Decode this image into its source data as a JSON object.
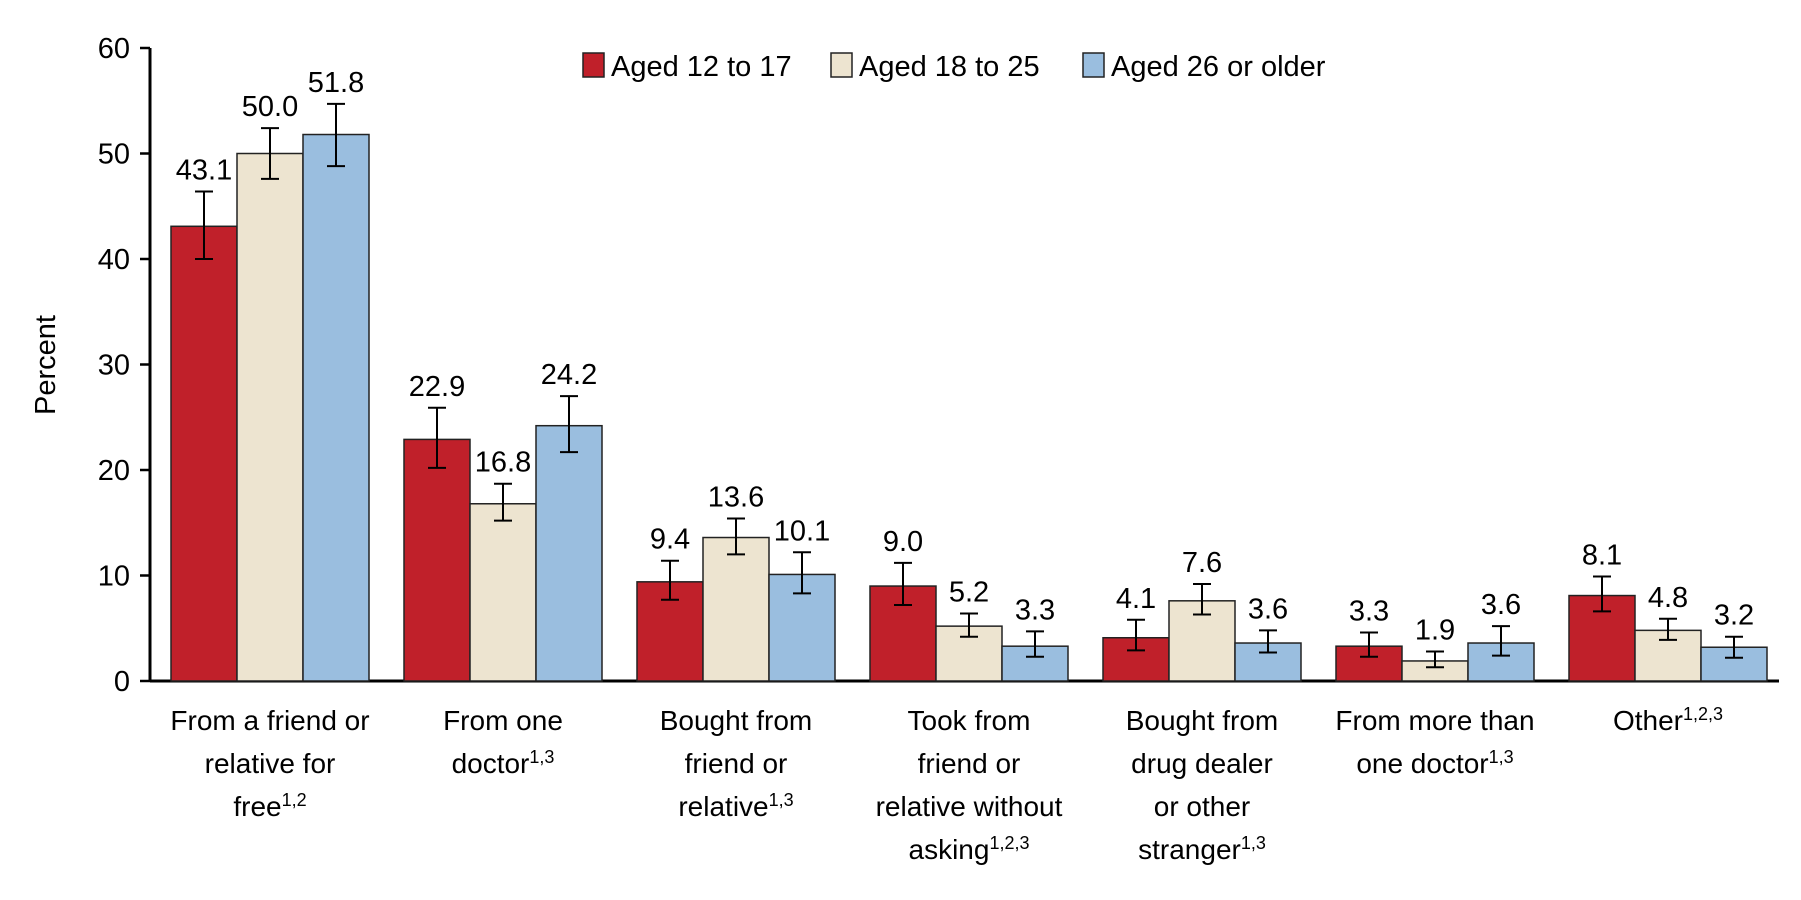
{
  "chart_data": {
    "type": "bar",
    "title": "",
    "xlabel": "",
    "ylabel": "Percent",
    "ylim": [
      0,
      60
    ],
    "yticks": [
      0,
      10,
      20,
      30,
      40,
      50,
      60
    ],
    "grid": false,
    "legend_position": "top-center",
    "categories": [
      {
        "lines": [
          "From a friend or",
          "relative for",
          "free"
        ],
        "sup": "1,2"
      },
      {
        "lines": [
          "From one",
          "doctor"
        ],
        "sup": "1,3"
      },
      {
        "lines": [
          "Bought from",
          "friend or",
          "relative"
        ],
        "sup": "1,3"
      },
      {
        "lines": [
          "Took from",
          "friend or",
          "relative without",
          "asking"
        ],
        "sup": "1,2,3"
      },
      {
        "lines": [
          "Bought from",
          "drug dealer",
          "or other",
          "stranger"
        ],
        "sup": "1,3"
      },
      {
        "lines": [
          "From more than",
          "one doctor"
        ],
        "sup": "1,3"
      },
      {
        "lines": [
          "Other"
        ],
        "sup": "1,2,3"
      }
    ],
    "series": [
      {
        "name": "Aged 12 to 17",
        "color": "#C0202A",
        "values": [
          43.1,
          22.9,
          9.4,
          9.0,
          4.1,
          3.3,
          8.1
        ],
        "ci_low": [
          40.0,
          20.2,
          7.7,
          7.2,
          2.9,
          2.3,
          6.6
        ],
        "ci_high": [
          46.4,
          25.9,
          11.4,
          11.2,
          5.8,
          4.6,
          9.9
        ],
        "labels": [
          "43.1",
          "22.9",
          "9.4",
          "9.0",
          "4.1",
          "3.3",
          "8.1"
        ]
      },
      {
        "name": "Aged 18 to 25",
        "color": "#EDE4D0",
        "values": [
          50.0,
          16.8,
          13.6,
          5.2,
          7.6,
          1.9,
          4.8
        ],
        "ci_low": [
          47.6,
          15.2,
          12.0,
          4.2,
          6.3,
          1.3,
          3.9
        ],
        "ci_high": [
          52.4,
          18.7,
          15.4,
          6.4,
          9.2,
          2.8,
          5.9
        ],
        "labels": [
          "50.0",
          "16.8",
          "13.6",
          "5.2",
          "7.6",
          "1.9",
          "4.8"
        ]
      },
      {
        "name": "Aged 26 or older",
        "color": "#9ABEDF",
        "values": [
          51.8,
          24.2,
          10.1,
          3.3,
          3.6,
          3.6,
          3.2
        ],
        "ci_low": [
          48.8,
          21.7,
          8.3,
          2.3,
          2.7,
          2.4,
          2.2
        ],
        "ci_high": [
          54.7,
          27.0,
          12.2,
          4.7,
          4.8,
          5.2,
          4.2
        ],
        "labels": [
          "51.8",
          "24.2",
          "10.1",
          "3.3",
          "3.6",
          "3.6",
          "3.2"
        ]
      }
    ]
  }
}
